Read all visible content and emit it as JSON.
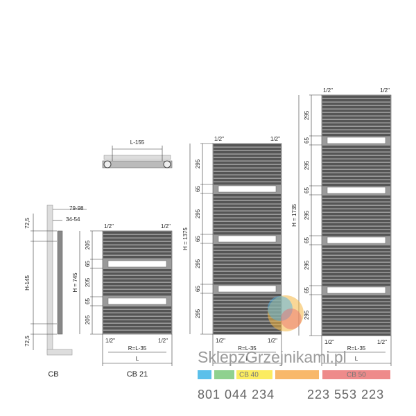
{
  "side_view": {
    "dims": [
      "79-98",
      "34-54",
      "72,5",
      "H-145",
      "72,5"
    ],
    "label": "CB"
  },
  "top_view": {
    "dim": "L-155"
  },
  "radiators": [
    {
      "height": "H = 745",
      "connections_top": [
        "1/2\"",
        "1/2\""
      ],
      "sections": [
        "205",
        "65",
        "205",
        "65",
        "205"
      ],
      "connections_bottom": [
        "1/2\"",
        "1/2\""
      ],
      "spacing": "R=L-35",
      "width": "L",
      "label": "CB 21"
    },
    {
      "height": "H = 1375",
      "connections_top": [
        "1/2\"",
        "1/2\""
      ],
      "sections": [
        "295",
        "65",
        "295",
        "65",
        "295",
        "65",
        "295"
      ],
      "connections_bottom": [
        "1/2\"",
        "1/2\""
      ],
      "spacing": "R=L-35",
      "width": "L"
    },
    {
      "height": "H = 1735",
      "connections_top": [
        "1/2\"",
        "1/2\""
      ],
      "sections": [
        "295",
        "65",
        "295",
        "65",
        "295",
        "65",
        "295",
        "65",
        "295"
      ],
      "connections_bottom": [
        "1/2\"",
        "1/2\""
      ],
      "spacing": "R=L-35",
      "width": "L"
    }
  ],
  "watermark": {
    "text": "SklepzGrzejnikami.pl",
    "models": [
      "CB 40",
      "CB 50"
    ],
    "phones": [
      "801 044 234",
      "223 553 223"
    ]
  }
}
